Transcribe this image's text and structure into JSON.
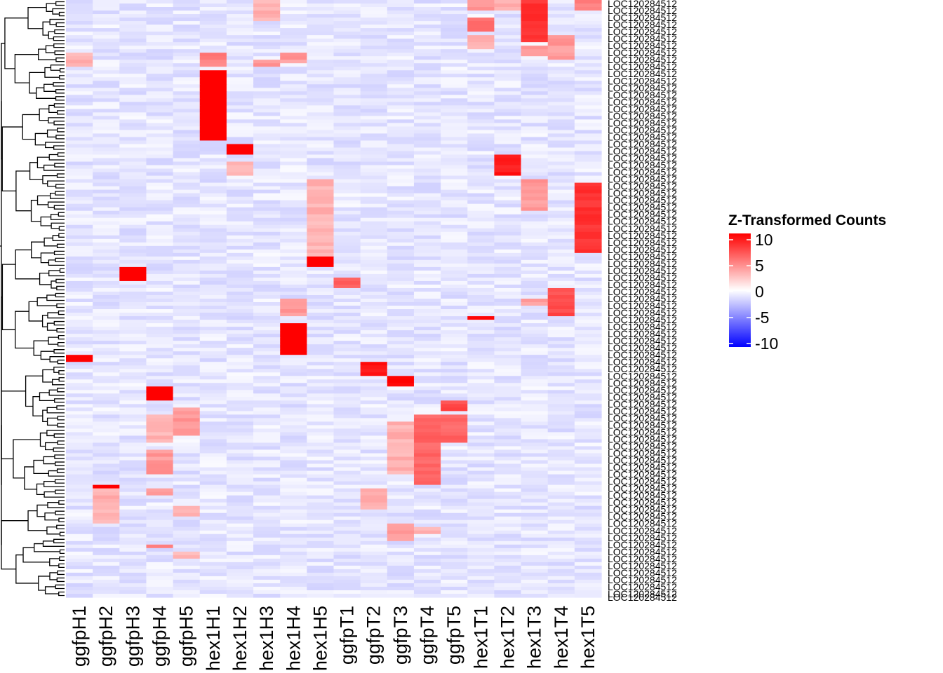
{
  "chart_data": {
    "type": "heatmap",
    "title": "",
    "legend": {
      "title": "Z-Transformed Counts",
      "ticks": [
        10,
        5,
        0,
        -5,
        -10
      ],
      "range": [
        -10,
        10
      ],
      "low_color": "#0000ff",
      "mid_color": "#ffffff",
      "high_color": "#ff0000",
      "position": "right"
    },
    "columns": [
      "ggfpH1",
      "ggfpH2",
      "ggfpH3",
      "ggfpH4",
      "ggfpH5",
      "hex1H1",
      "hex1H2",
      "hex1H3",
      "hex1H4",
      "hex1H5",
      "ggfpT1",
      "ggfpT2",
      "ggfpT3",
      "ggfpT4",
      "ggfpT5",
      "hex1T1",
      "hex1T2",
      "hex1T3",
      "hex1T4",
      "hex1T5"
    ],
    "row_count": 170,
    "row_label_visible": "LOC120284512",
    "background_value": -1,
    "blocks": [
      {
        "col": "hex1T3",
        "rows": [
          0,
          12
        ],
        "value": 8
      },
      {
        "col": "hex1T5",
        "rows": [
          0,
          3
        ],
        "value": 5
      },
      {
        "col": "hex1T1",
        "rows": [
          0,
          3
        ],
        "value": 4
      },
      {
        "col": "hex1T2",
        "rows": [
          0,
          3
        ],
        "value": 3
      },
      {
        "col": "hex1H3",
        "rows": [
          0,
          6
        ],
        "value": 3
      },
      {
        "col": "hex1T1",
        "rows": [
          5,
          9
        ],
        "value": 6
      },
      {
        "col": "hex1T1",
        "rows": [
          10,
          14
        ],
        "value": 3
      },
      {
        "col": "hex1T3",
        "rows": [
          13,
          16
        ],
        "value": 4
      },
      {
        "col": "hex1T4",
        "rows": [
          10,
          17
        ],
        "value": 4
      },
      {
        "col": "ggfpH1",
        "rows": [
          15,
          19
        ],
        "value": 3
      },
      {
        "col": "hex1H3",
        "rows": [
          17,
          19
        ],
        "value": 4
      },
      {
        "col": "hex1H4",
        "rows": [
          15,
          18
        ],
        "value": 4
      },
      {
        "col": "hex1H1",
        "rows": [
          15,
          19
        ],
        "value": 5
      },
      {
        "col": "hex1H1",
        "rows": [
          20,
          40
        ],
        "value": 11
      },
      {
        "col": "hex1H2",
        "rows": [
          41,
          44
        ],
        "value": 11
      },
      {
        "col": "hex1T2",
        "rows": [
          44,
          50
        ],
        "value": 9
      },
      {
        "col": "hex1H2",
        "rows": [
          46,
          50
        ],
        "value": 3
      },
      {
        "col": "hex1H5",
        "rows": [
          51,
          73
        ],
        "value": 3
      },
      {
        "col": "hex1H5",
        "rows": [
          73,
          76
        ],
        "value": 11
      },
      {
        "col": "hex1T5",
        "rows": [
          52,
          72
        ],
        "value": 8
      },
      {
        "col": "hex1T3",
        "rows": [
          51,
          60
        ],
        "value": 4
      },
      {
        "col": "ggfpH3",
        "rows": [
          76,
          80
        ],
        "value": 11
      },
      {
        "col": "ggfpT1",
        "rows": [
          79,
          82
        ],
        "value": 6
      },
      {
        "col": "hex1T4",
        "rows": [
          82,
          90
        ],
        "value": 7
      },
      {
        "col": "hex1H4",
        "rows": [
          85,
          90
        ],
        "value": 4
      },
      {
        "col": "hex1T3",
        "rows": [
          85,
          87
        ],
        "value": 4
      },
      {
        "col": "hex1T1",
        "rows": [
          90,
          91
        ],
        "value": 10
      },
      {
        "col": "hex1H4",
        "rows": [
          92,
          101
        ],
        "value": 11
      },
      {
        "col": "ggfpH1",
        "rows": [
          101,
          103
        ],
        "value": 11
      },
      {
        "col": "ggfpT2",
        "rows": [
          103,
          107
        ],
        "value": 9
      },
      {
        "col": "ggfpT3",
        "rows": [
          107,
          110
        ],
        "value": 10
      },
      {
        "col": "ggfpH4",
        "rows": [
          110,
          114
        ],
        "value": 11
      },
      {
        "col": "ggfpT5",
        "rows": [
          114,
          117
        ],
        "value": 7
      },
      {
        "col": "ggfpH5",
        "rows": [
          116,
          124
        ],
        "value": 4
      },
      {
        "col": "ggfpH4",
        "rows": [
          118,
          126
        ],
        "value": 3
      },
      {
        "col": "ggfpT4",
        "rows": [
          118,
          138
        ],
        "value": 6
      },
      {
        "col": "ggfpT5",
        "rows": [
          118,
          126
        ],
        "value": 6
      },
      {
        "col": "ggfpT3",
        "rows": [
          120,
          135
        ],
        "value": 3
      },
      {
        "col": "ggfpH4",
        "rows": [
          128,
          135
        ],
        "value": 4
      },
      {
        "col": "ggfpH2",
        "rows": [
          138,
          139
        ],
        "value": 10
      },
      {
        "col": "ggfpH2",
        "rows": [
          139,
          149
        ],
        "value": 3
      },
      {
        "col": "ggfpT2",
        "rows": [
          139,
          145
        ],
        "value": 3
      },
      {
        "col": "ggfpH4",
        "rows": [
          139,
          141
        ],
        "value": 4
      },
      {
        "col": "ggfpH5",
        "rows": [
          144,
          147
        ],
        "value": 3
      },
      {
        "col": "ggfpT3",
        "rows": [
          149,
          154
        ],
        "value": 4
      },
      {
        "col": "ggfpT4",
        "rows": [
          150,
          152
        ],
        "value": 3
      },
      {
        "col": "ggfpH4",
        "rows": [
          155,
          156
        ],
        "value": 5
      },
      {
        "col": "ggfpH5",
        "rows": [
          157,
          159
        ],
        "value": 3
      }
    ]
  }
}
